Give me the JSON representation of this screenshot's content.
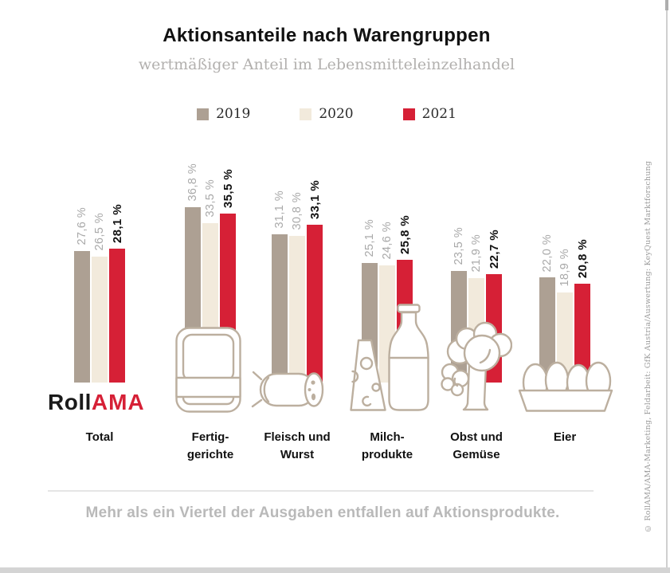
{
  "header": {
    "title": "Aktionsanteile nach Warengruppen",
    "subtitle": "wertmäßiger Anteil im Lebensmitteleinzelhandel"
  },
  "legend": {
    "items": [
      {
        "label": "2019",
        "color": "#ada093"
      },
      {
        "label": "2020",
        "color": "#f2eadc"
      },
      {
        "label": "2021",
        "color": "#d62036"
      }
    ]
  },
  "chart_data": {
    "type": "bar",
    "title": "Aktionsanteile nach Warengruppen",
    "subtitle": "wertmäßiger Anteil im Lebensmitteleinzelhandel",
    "unit": "percent",
    "categories": [
      "Total",
      "Fertiggerichte",
      "Fleisch und Wurst",
      "Milchprodukte",
      "Obst und Gemüse",
      "Eier"
    ],
    "series": [
      {
        "name": "2019",
        "color": "#ada093",
        "values": [
          27.6,
          36.8,
          31.1,
          25.1,
          23.5,
          22.0
        ]
      },
      {
        "name": "2020",
        "color": "#f2eadc",
        "values": [
          26.5,
          33.5,
          30.8,
          24.6,
          21.9,
          18.9
        ]
      },
      {
        "name": "2021",
        "color": "#d62036",
        "values": [
          28.1,
          35.5,
          33.1,
          25.8,
          22.7,
          20.8
        ]
      }
    ],
    "ylim": [
      0,
      40
    ],
    "grid": false,
    "legend_position": "top",
    "value_labels_rotated": true
  },
  "groups": [
    {
      "label1": "Total",
      "label2": "",
      "values": [
        "27,6 %",
        "26,5 %",
        "28,1 %"
      ],
      "icon": "none"
    },
    {
      "label1": "Fertig-",
      "label2": "gerichte",
      "values": [
        "36,8 %",
        "33,5 %",
        "35,5 %"
      ],
      "icon": "ready-meal-tray"
    },
    {
      "label1": "Fleisch und",
      "label2": "Wurst",
      "values": [
        "31,1 %",
        "30,8 %",
        "33,1 %"
      ],
      "icon": "sausage"
    },
    {
      "label1": "Milch-",
      "label2": "produkte",
      "values": [
        "25,1 %",
        "24,6 %",
        "25,8 %"
      ],
      "icon": "cheese-and-milk-bottle"
    },
    {
      "label1": "Obst und",
      "label2": "Gemüse",
      "values": [
        "23,5 %",
        "21,9 %",
        "22,7 %"
      ],
      "icon": "broccoli"
    },
    {
      "label1": "Eier",
      "label2": "",
      "values": [
        "22,0 %",
        "18,9 %",
        "20,8 %"
      ],
      "icon": "egg-carton"
    }
  ],
  "logo": {
    "part1": "Roll",
    "part2": "AMA"
  },
  "footer": {
    "message": "Mehr als ein Viertel der Ausgaben entfallen auf Aktionsprodukte."
  },
  "copyright": "© RollAMA/AMA-Marketing, Feldarbeit: GfK Austria/Auswertung: KeyQuest Marktforschung"
}
